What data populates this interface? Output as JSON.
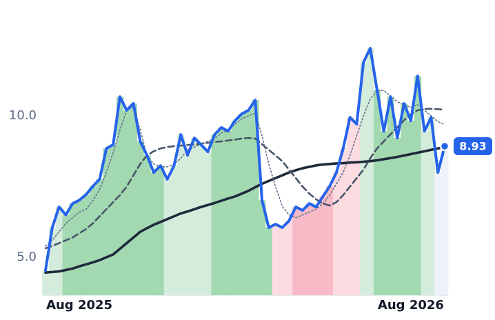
{
  "chart_data": {
    "type": "line",
    "categories": [
      null,
      null,
      null,
      null,
      null,
      "Aug 2025",
      null,
      null,
      null,
      null,
      null,
      null,
      null,
      null,
      null,
      null,
      null,
      null,
      null,
      null,
      null,
      null,
      null,
      null,
      null,
      null,
      null,
      null,
      null,
      null,
      null,
      null,
      null,
      null,
      null,
      null,
      null,
      null,
      null,
      null,
      null,
      null,
      null,
      null,
      null,
      null,
      null,
      null,
      null,
      null,
      null,
      null,
      null,
      null,
      "Aug 2026",
      null,
      null,
      null,
      null,
      null
    ],
    "ylim": [
      3.66,
      14.1
    ],
    "yticks": [
      {
        "value": 5,
        "label": "5.0"
      },
      {
        "value": 10,
        "label": "10.0"
      }
    ],
    "series": [
      {
        "color": "#2563eb",
        "line_style": "solid",
        "values": [
          4.54,
          6.05,
          6.78,
          6.5,
          6.9,
          7.02,
          7.22,
          7.51,
          7.76,
          8.85,
          8.98,
          10.68,
          10.2,
          10.44,
          9.1,
          8.61,
          8.0,
          8.24,
          7.76,
          8.24,
          9.34,
          8.61,
          9.22,
          8.98,
          8.73,
          9.34,
          9.59,
          9.46,
          9.83,
          10.07,
          10.2,
          10.56,
          7.02,
          6.05,
          6.17,
          6.05,
          6.29,
          6.78,
          6.66,
          6.9,
          6.78,
          7.15,
          7.51,
          8.0,
          8.85,
          9.95,
          9.71,
          11.9,
          12.39,
          10.93,
          9.46,
          10.68,
          9.22,
          10.44,
          9.83,
          11.41,
          9.46,
          9.95,
          8.0,
          8.93
        ],
        "fill_colors": [
          "#d4ecdc",
          "#d4ecdc",
          "#d4ecdc",
          "#a3d9b1",
          "#a3d9b1",
          "#a3d9b1",
          "#a3d9b1",
          "#a3d9b1",
          "#a3d9b1",
          "#a3d9b1",
          "#a3d9b1",
          "#a3d9b1",
          "#a3d9b1",
          "#a3d9b1",
          "#a3d9b1",
          "#a3d9b1",
          "#a3d9b1",
          "#a3d9b1",
          "#d4ecdc",
          "#d4ecdc",
          "#d4ecdc",
          "#d4ecdc",
          "#d4ecdc",
          "#d4ecdc",
          "#d4ecdc",
          "#a3d9b1",
          "#a3d9b1",
          "#a3d9b1",
          "#a3d9b1",
          "#a3d9b1",
          "#a3d9b1",
          "#a3d9b1",
          "#a3d9b1",
          "#a3d9b1",
          "#fcdbe1",
          "#fcdbe1",
          "#fcdbe1",
          "#f8bac6",
          "#f8bac6",
          "#f8bac6",
          "#f8bac6",
          "#f8bac6",
          "#f8bac6",
          "#fcdbe1",
          "#fcdbe1",
          "#fcdbe1",
          "#fcdbe1",
          "#d4ecdc",
          "#d4ecdc",
          "#a3d9b1",
          "#a3d9b1",
          "#a3d9b1",
          "#a3d9b1",
          "#a3d9b1",
          "#a3d9b1",
          "#a3d9b1",
          "#d4ecdc",
          "#d4ecdc",
          "#eef2f8",
          "#eef2f8"
        ]
      },
      {
        "color": "#64748b",
        "line_style": "dotted",
        "values": [
          5.4,
          5.6,
          5.9,
          6.2,
          6.4,
          6.6,
          6.7,
          7.0,
          7.4,
          8.0,
          8.7,
          9.5,
          10.2,
          10.3,
          9.5,
          8.6,
          8.3,
          8.2,
          8.2,
          8.3,
          8.5,
          8.8,
          8.9,
          9.0,
          9.1,
          9.2,
          9.4,
          9.5,
          9.7,
          9.9,
          10.0,
          10.1,
          9.3,
          8.3,
          7.5,
          6.8,
          6.5,
          6.4,
          6.5,
          6.6,
          6.7,
          6.9,
          7.2,
          7.6,
          8.0,
          8.6,
          9.3,
          10.0,
          10.6,
          10.9,
          10.9,
          10.7,
          10.5,
          10.4,
          10.3,
          10.4,
          10.2,
          10.0,
          9.8,
          9.7
        ]
      },
      {
        "color": "#475569",
        "line_style": "dashed",
        "values": [
          5.32,
          5.4,
          5.5,
          5.6,
          5.7,
          5.85,
          6.0,
          6.2,
          6.45,
          6.7,
          6.95,
          7.2,
          7.5,
          7.9,
          8.3,
          8.6,
          8.75,
          8.85,
          8.9,
          8.93,
          8.95,
          8.97,
          8.99,
          9.02,
          9.05,
          9.08,
          9.1,
          9.13,
          9.16,
          9.2,
          9.22,
          9.2,
          9.0,
          8.8,
          8.6,
          8.4,
          8.1,
          7.8,
          7.5,
          7.25,
          7.05,
          6.9,
          6.83,
          6.95,
          7.2,
          7.5,
          7.8,
          8.1,
          8.5,
          8.85,
          9.1,
          9.35,
          9.6,
          9.85,
          10.05,
          10.2,
          10.25,
          10.25,
          10.24,
          10.22
        ]
      },
      {
        "color": "#1e293b",
        "line_style": "solid",
        "values": [
          4.46,
          4.48,
          4.5,
          4.55,
          4.6,
          4.68,
          4.75,
          4.82,
          4.9,
          5.0,
          5.1,
          5.3,
          5.5,
          5.7,
          5.9,
          6.03,
          6.15,
          6.25,
          6.35,
          6.45,
          6.55,
          6.62,
          6.7,
          6.78,
          6.85,
          6.92,
          7.0,
          7.08,
          7.15,
          7.25,
          7.35,
          7.48,
          7.6,
          7.7,
          7.8,
          7.9,
          8.0,
          8.08,
          8.15,
          8.2,
          8.25,
          8.28,
          8.3,
          8.32,
          8.33,
          8.35,
          8.36,
          8.38,
          8.4,
          8.43,
          8.47,
          8.51,
          8.55,
          8.6,
          8.65,
          8.7,
          8.75,
          8.8,
          8.85,
          8.9
        ]
      }
    ]
  }
}
